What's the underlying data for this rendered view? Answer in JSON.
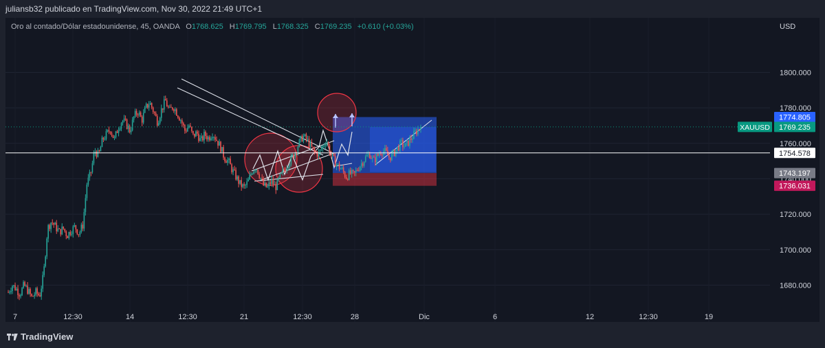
{
  "header": {
    "publisher_line": "juliansb32 publicado en TradingView.com, Nov 30, 2022 21:49 UTC+1"
  },
  "legend": {
    "symbol_desc": "Oro al contado/Dólar estadounidense, 45, OANDA",
    "o_label": "O",
    "o_value": "1768.625",
    "h_label": "H",
    "h_value": "1769.795",
    "l_label": "L",
    "l_value": "1768.325",
    "c_label": "C",
    "c_value": "1769.235",
    "change": "+0.610 (+0.03%)"
  },
  "price_axis": {
    "currency": "USD"
  },
  "footer": {
    "brand": "TradingView"
  },
  "colors": {
    "background": "#131722",
    "frame": "#1e222d",
    "up": "#26a69a",
    "down": "#ef5350",
    "target_zone": "#2962ff",
    "stop_zone": "#f23645",
    "symbol_tag": "#089981",
    "current_tag": "#2962ff"
  },
  "chart_data": {
    "type": "candlestick",
    "symbol": "XAUUSD",
    "interval": "45",
    "y_ticks": [
      1680,
      1700,
      1720,
      1740,
      1760,
      1780,
      1800
    ],
    "y_tick_labels": [
      "1680.000",
      "1700.000",
      "1720.000",
      "1740.000",
      "1760.000",
      "1780.000",
      "1800.000"
    ],
    "ylim": [
      1660.8,
      1817.6
    ],
    "x_ticks": [
      "7",
      "12:30",
      "14",
      "12:30",
      "21",
      "12:30",
      "28",
      "Dic",
      "6",
      "12",
      "12:30",
      "19"
    ],
    "close_path": [
      1676,
      1680,
      1678,
      1675,
      1680,
      1677,
      1673,
      1676,
      1674,
      1686,
      1712,
      1716,
      1713,
      1710,
      1712,
      1708,
      1711,
      1713,
      1709,
      1714,
      1737,
      1743,
      1756,
      1753,
      1762,
      1765,
      1768,
      1762,
      1769,
      1773,
      1771,
      1767,
      1775,
      1778,
      1773,
      1780,
      1783,
      1778,
      1772,
      1779,
      1784,
      1778,
      1781,
      1777,
      1773,
      1767,
      1770,
      1764,
      1766,
      1761,
      1765,
      1763,
      1766,
      1762,
      1758,
      1752,
      1750,
      1745,
      1741,
      1737,
      1735,
      1738,
      1744,
      1747,
      1742,
      1736,
      1735,
      1739,
      1735,
      1740,
      1744,
      1748,
      1751,
      1755,
      1760,
      1764,
      1762,
      1758,
      1755,
      1754,
      1758,
      1762,
      1754,
      1750,
      1747,
      1745,
      1741,
      1743,
      1742,
      1746,
      1749,
      1752,
      1754,
      1750,
      1753,
      1756,
      1755,
      1752,
      1754,
      1757,
      1760,
      1758,
      1761,
      1764,
      1767,
      1769.235
    ],
    "horizontal_lines": [
      {
        "price": "1754.578",
        "color": "#ffffff"
      }
    ],
    "price_tags": [
      {
        "label": "1774.805",
        "price": 1774.805,
        "color": "#2962ff"
      },
      {
        "label": "1769.235",
        "price": 1769.235,
        "color": "#089981"
      },
      {
        "label": "1754.578",
        "price": 1754.578,
        "color": "#ffffff",
        "text_color": "#131722"
      },
      {
        "label": "1743.197",
        "price": 1743.197,
        "color": "#787b86"
      },
      {
        "label": "1736.031",
        "price": 1736.031,
        "color": "#c2185b"
      }
    ],
    "symbol_tag": {
      "label": "XAUUSD",
      "price": 1769.235
    },
    "last_price": 1769.235,
    "position": {
      "target_price": 1774.805,
      "entry_price": 1743.197,
      "stop_price": 1736.031
    }
  }
}
